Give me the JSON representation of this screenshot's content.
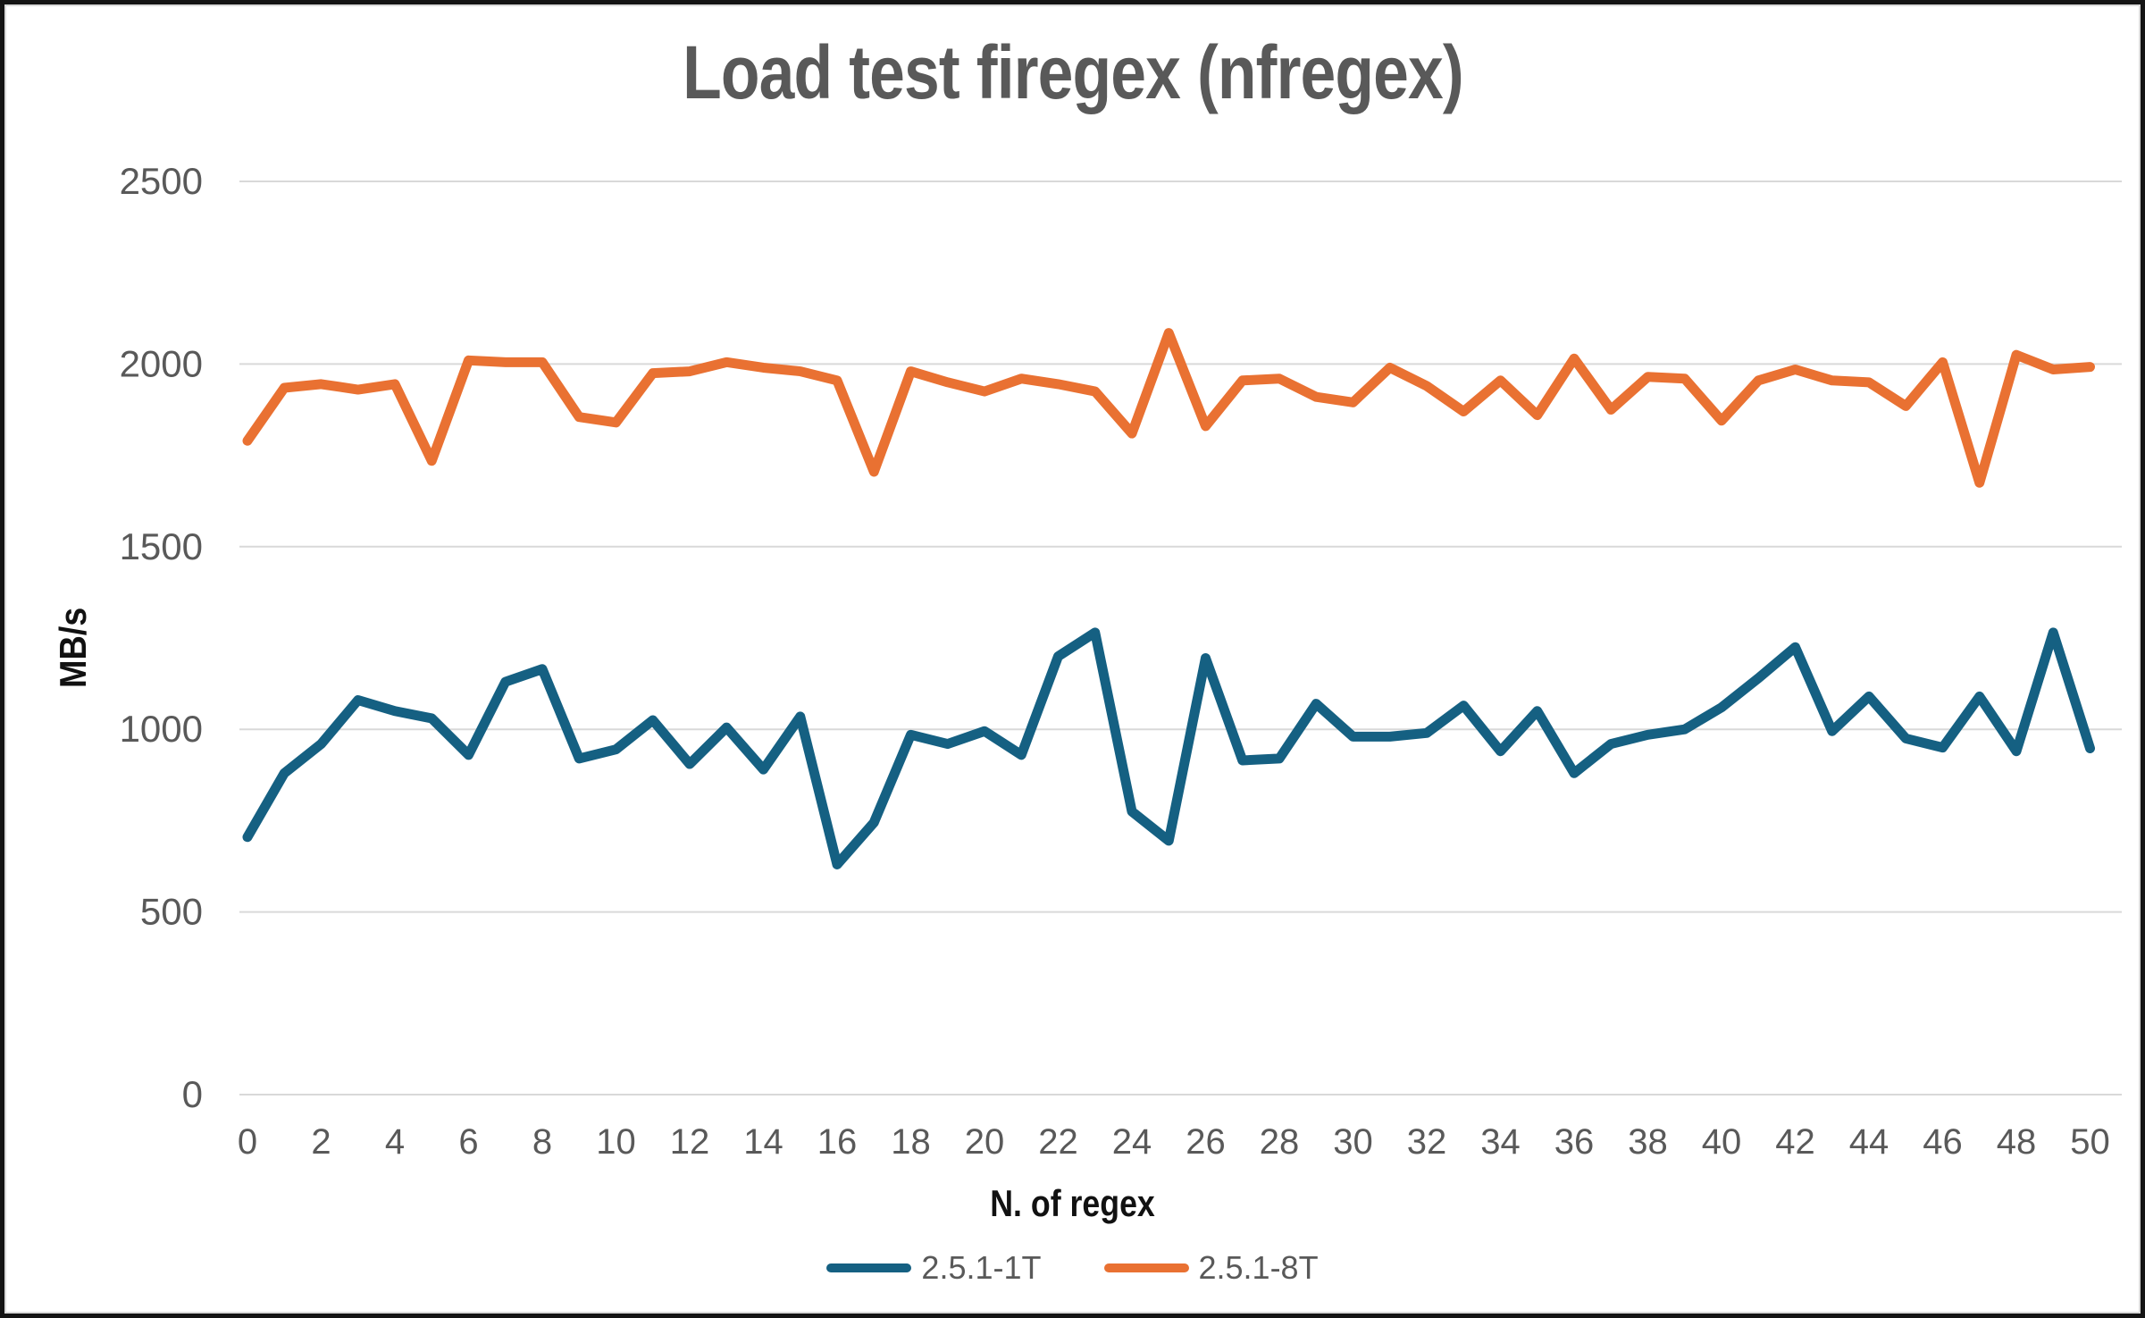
{
  "frame": {
    "border_color": "#141414",
    "inner_hairline_color": "#dadada",
    "background": "#ffffff"
  },
  "text_colors": {
    "title": "#595959",
    "tick_labels": "#595959",
    "axis_titles": "#111111",
    "gridline": "#d9d9d9"
  },
  "chart_data": {
    "type": "line",
    "title": "Load test firegex (nfregex)",
    "xlabel": "N. of regex",
    "ylabel": "MB/s",
    "x": [
      0,
      1,
      2,
      3,
      4,
      5,
      6,
      7,
      8,
      9,
      10,
      11,
      12,
      13,
      14,
      15,
      16,
      17,
      18,
      19,
      20,
      21,
      22,
      23,
      24,
      25,
      26,
      27,
      28,
      29,
      30,
      31,
      32,
      33,
      34,
      35,
      36,
      37,
      38,
      39,
      40,
      41,
      42,
      43,
      44,
      45,
      46,
      47,
      48,
      49,
      50
    ],
    "xticks": [
      0,
      2,
      4,
      6,
      8,
      10,
      12,
      14,
      16,
      18,
      20,
      22,
      24,
      26,
      28,
      30,
      32,
      34,
      36,
      38,
      40,
      42,
      44,
      46,
      48,
      50
    ],
    "yticks": [
      0,
      500,
      1000,
      1500,
      2000,
      2500
    ],
    "ylim": [
      0,
      2500
    ],
    "grid": true,
    "legend_position": "bottom-center",
    "series": [
      {
        "name": "2.5.1-1T",
        "color": "#156082",
        "values": [
          705,
          880,
          960,
          1080,
          1050,
          1030,
          930,
          1130,
          1165,
          920,
          945,
          1025,
          905,
          1005,
          890,
          1035,
          630,
          745,
          985,
          960,
          995,
          930,
          1200,
          1265,
          775,
          695,
          1195,
          915,
          920,
          1070,
          980,
          980,
          990,
          1065,
          940,
          1050,
          880,
          960,
          985,
          1000,
          1060,
          1140,
          1225,
          995,
          1090,
          975,
          950,
          1090,
          940,
          1265,
          948
        ]
      },
      {
        "name": "2.5.1-8T",
        "color": "#E97132",
        "values": [
          1790,
          1935,
          1945,
          1930,
          1945,
          1735,
          2010,
          2005,
          2005,
          1855,
          1840,
          1975,
          1980,
          2005,
          1990,
          1980,
          1955,
          1705,
          1980,
          1950,
          1925,
          1960,
          1945,
          1925,
          1810,
          2085,
          1830,
          1955,
          1960,
          1910,
          1895,
          1990,
          1940,
          1870,
          1955,
          1860,
          2015,
          1875,
          1965,
          1960,
          1845,
          1955,
          1985,
          1955,
          1950,
          1885,
          2005,
          1675,
          2025,
          1985,
          1992
        ]
      }
    ]
  }
}
